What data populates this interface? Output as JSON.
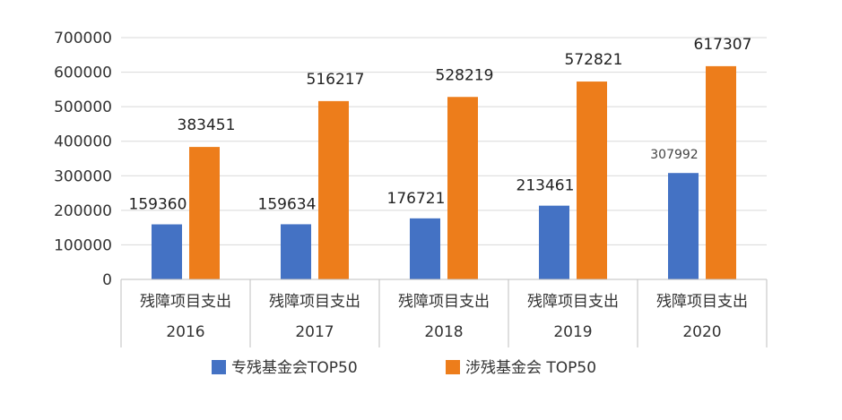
{
  "chart_data": {
    "type": "bar",
    "categories": [
      "残障项目支出",
      "残障项目支出",
      "残障项目支出",
      "残障项目支出",
      "残障项目支出"
    ],
    "categories_level2": [
      "2016",
      "2017",
      "2018",
      "2019",
      "2020"
    ],
    "series": [
      {
        "name": "专残基金会TOP50",
        "values": [
          159360,
          159634,
          176721,
          213461,
          307992
        ],
        "color": "#4472C4"
      },
      {
        "name": "涉残基金会 TOP50",
        "values": [
          383451,
          516217,
          528219,
          572821,
          617307
        ],
        "color": "#ED7D1B"
      }
    ],
    "ylim": [
      0,
      700000
    ],
    "yticks": [
      "0",
      "100000",
      "200000",
      "300000",
      "400000",
      "500000",
      "600000",
      "700000"
    ],
    "grid": true,
    "legend_position": "bottom"
  }
}
